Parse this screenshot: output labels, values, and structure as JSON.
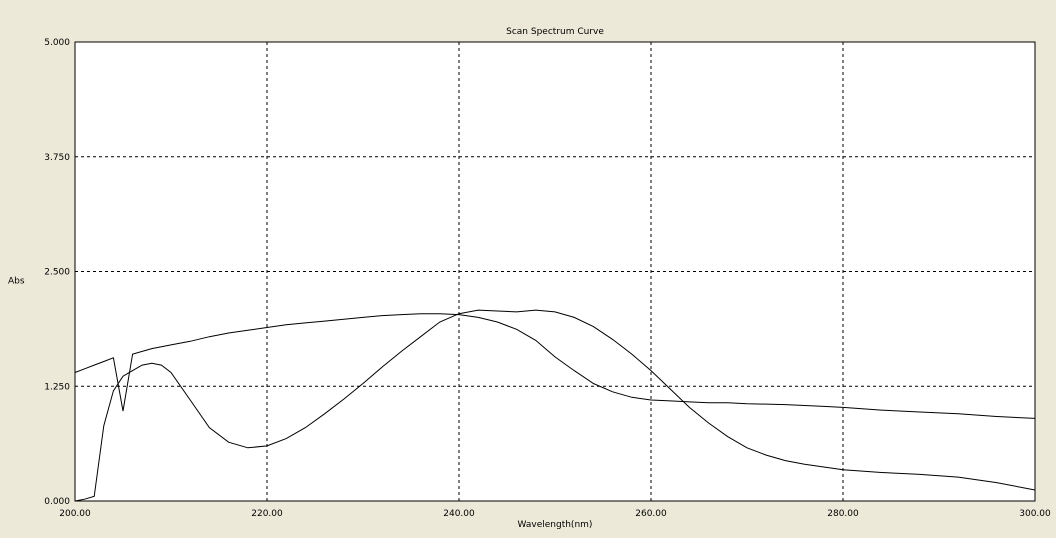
{
  "chart_data": {
    "type": "line",
    "title": "Scan Spectrum Curve",
    "xlabel": "Wavelength(nm)",
    "ylabel": "Abs",
    "xlim": [
      200,
      300
    ],
    "ylim": [
      0,
      5
    ],
    "grid": true,
    "x_ticks": [
      "200.00",
      "220.00",
      "240.00",
      "260.00",
      "280.00",
      "300.00"
    ],
    "y_ticks": [
      "0.000",
      "1.250",
      "2.500",
      "3.750",
      "5.000"
    ],
    "x_tick_values": [
      200,
      220,
      240,
      260,
      280,
      300
    ],
    "y_tick_values": [
      0,
      1.25,
      2.5,
      3.75,
      5
    ],
    "series": [
      {
        "color": "#000000",
        "points": [
          [
            200,
            1.4
          ],
          [
            201,
            1.44
          ],
          [
            202,
            1.48
          ],
          [
            203,
            1.52
          ],
          [
            204,
            1.56
          ],
          [
            205,
            0.98
          ],
          [
            206,
            1.6
          ],
          [
            207,
            1.63
          ],
          [
            208,
            1.66
          ],
          [
            210,
            1.7
          ],
          [
            212,
            1.74
          ],
          [
            214,
            1.79
          ],
          [
            216,
            1.83
          ],
          [
            218,
            1.86
          ],
          [
            220,
            1.89
          ],
          [
            222,
            1.92
          ],
          [
            224,
            1.94
          ],
          [
            226,
            1.96
          ],
          [
            228,
            1.98
          ],
          [
            230,
            2.0
          ],
          [
            232,
            2.02
          ],
          [
            234,
            2.03
          ],
          [
            236,
            2.04
          ],
          [
            238,
            2.04
          ],
          [
            240,
            2.03
          ],
          [
            242,
            2.0
          ],
          [
            244,
            1.95
          ],
          [
            246,
            1.87
          ],
          [
            248,
            1.75
          ],
          [
            250,
            1.57
          ],
          [
            252,
            1.42
          ],
          [
            254,
            1.28
          ],
          [
            256,
            1.19
          ],
          [
            258,
            1.13
          ],
          [
            260,
            1.1
          ],
          [
            262,
            1.09
          ],
          [
            264,
            1.08
          ],
          [
            266,
            1.07
          ],
          [
            268,
            1.07
          ],
          [
            270,
            1.06
          ],
          [
            274,
            1.05
          ],
          [
            278,
            1.03
          ],
          [
            280,
            1.02
          ],
          [
            284,
            0.99
          ],
          [
            288,
            0.97
          ],
          [
            292,
            0.95
          ],
          [
            296,
            0.92
          ],
          [
            300,
            0.9
          ]
        ]
      },
      {
        "color": "#000000",
        "points": [
          [
            200,
            0.0
          ],
          [
            201,
            0.02
          ],
          [
            202,
            0.05
          ],
          [
            203,
            0.82
          ],
          [
            204,
            1.2
          ],
          [
            205,
            1.36
          ],
          [
            206,
            1.42
          ],
          [
            207,
            1.48
          ],
          [
            208,
            1.5
          ],
          [
            209,
            1.48
          ],
          [
            210,
            1.4
          ],
          [
            212,
            1.1
          ],
          [
            214,
            0.8
          ],
          [
            216,
            0.64
          ],
          [
            218,
            0.58
          ],
          [
            220,
            0.6
          ],
          [
            222,
            0.68
          ],
          [
            224,
            0.8
          ],
          [
            226,
            0.95
          ],
          [
            228,
            1.11
          ],
          [
            230,
            1.28
          ],
          [
            232,
            1.46
          ],
          [
            234,
            1.63
          ],
          [
            236,
            1.79
          ],
          [
            238,
            1.95
          ],
          [
            240,
            2.04
          ],
          [
            242,
            2.08
          ],
          [
            244,
            2.07
          ],
          [
            246,
            2.06
          ],
          [
            248,
            2.08
          ],
          [
            250,
            2.06
          ],
          [
            252,
            2.0
          ],
          [
            254,
            1.9
          ],
          [
            256,
            1.76
          ],
          [
            258,
            1.6
          ],
          [
            260,
            1.42
          ],
          [
            262,
            1.22
          ],
          [
            264,
            1.02
          ],
          [
            266,
            0.85
          ],
          [
            268,
            0.7
          ],
          [
            270,
            0.58
          ],
          [
            272,
            0.5
          ],
          [
            274,
            0.44
          ],
          [
            276,
            0.4
          ],
          [
            278,
            0.37
          ],
          [
            280,
            0.34
          ],
          [
            284,
            0.31
          ],
          [
            288,
            0.29
          ],
          [
            292,
            0.26
          ],
          [
            296,
            0.2
          ],
          [
            300,
            0.12
          ]
        ]
      }
    ]
  }
}
